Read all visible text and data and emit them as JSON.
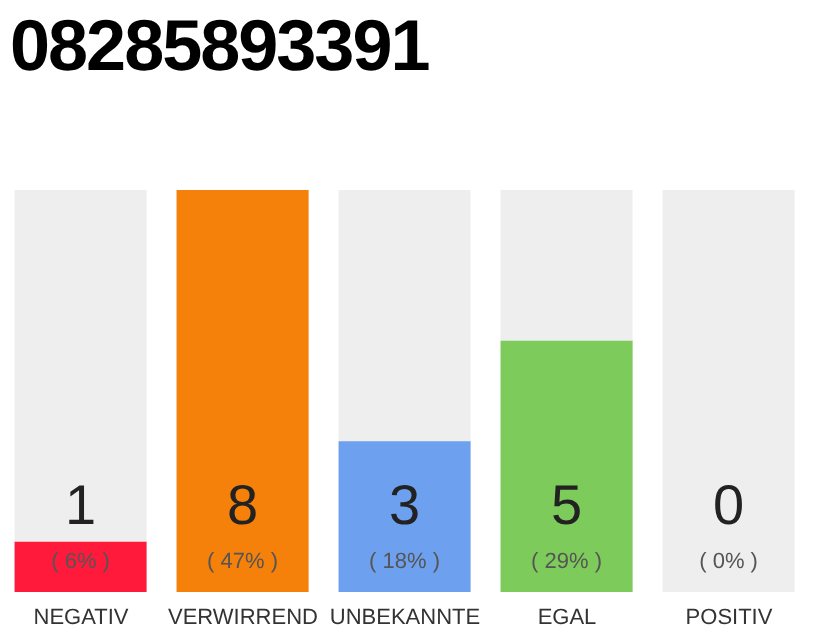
{
  "chart_data": {
    "type": "bar",
    "title": "08285893391",
    "categories": [
      "NEGATIV",
      "VERWIRREND",
      "UNBEKANNTE",
      "EGAL",
      "POSITIV"
    ],
    "values": [
      1,
      8,
      3,
      5,
      0
    ],
    "colors": [
      "#ff1a3c",
      "#f5800a",
      "#6ea0f0",
      "#7dcb5a",
      "#bbbbbb"
    ],
    "data_labels": true,
    "annotations": [
      "( 6% )",
      "( 47% )",
      "( 18% )",
      "( 29% )",
      "( 0% )"
    ]
  }
}
